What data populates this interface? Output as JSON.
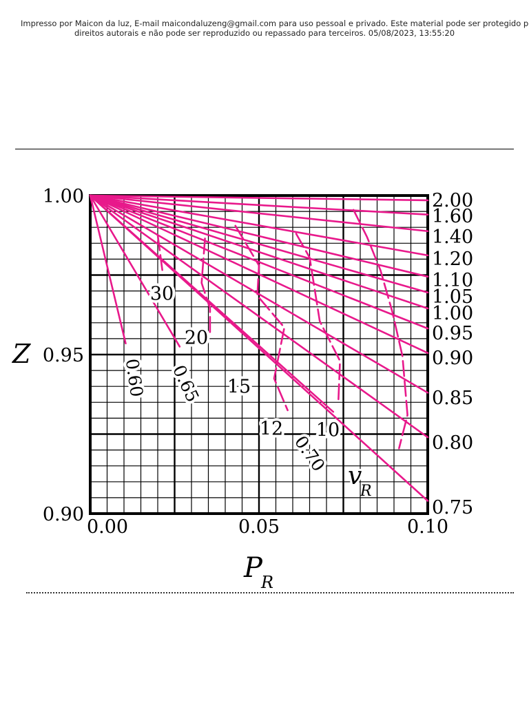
{
  "page": {
    "watermark_line1": "Impresso por Maicon da luz, E-mail maicondaluzeng@gmail.com para uso pessoal e privado. Este material pode ser protegido por",
    "watermark_line2": "direitos autorais e não pode ser reproduzido ou repassado para terceiros. 05/08/2023, 13:55:20"
  },
  "colors": {
    "curve": "#e8198b",
    "grid": "#000000",
    "text": "#000000"
  },
  "chart_data": {
    "type": "line",
    "title": "",
    "xlabel": "P",
    "xlabel_sub": "R",
    "ylabel": "Z",
    "xlim": [
      0.0,
      0.1
    ],
    "ylim": [
      0.9,
      1.0
    ],
    "grid": true,
    "x_ticks": [
      "0.00",
      "0.05",
      "0.10"
    ],
    "y_ticks": [
      "0.90",
      "0.95",
      "1.00"
    ],
    "solid_label": "",
    "dashed_label": "v",
    "dashed_label_sub": "R",
    "isotherms": [
      {
        "label": "2.00",
        "z_at_pr_0_1": 0.9985
      },
      {
        "label": "1.60",
        "z_at_pr_0_1": 0.994
      },
      {
        "label": "1.40",
        "z_at_pr_0_1": 0.9888
      },
      {
        "label": "1.20",
        "z_at_pr_0_1": 0.9812
      },
      {
        "label": "1.10",
        "z_at_pr_0_1": 0.9745
      },
      {
        "label": "1.05",
        "z_at_pr_0_1": 0.9695
      },
      {
        "label": "1.00",
        "z_at_pr_0_1": 0.9645
      },
      {
        "label": "0.95",
        "z_at_pr_0_1": 0.9582
      },
      {
        "label": "0.90",
        "z_at_pr_0_1": 0.9505
      },
      {
        "label": "0.85",
        "z_at_pr_0_1": 0.938
      },
      {
        "label": "0.80",
        "z_at_pr_0_1": 0.924
      },
      {
        "label": "0.75",
        "z_at_pr_0_1": 0.904
      },
      {
        "label": "0.70",
        "end": [
          0.072,
          0.932
        ]
      },
      {
        "label": "0.65",
        "end": [
          0.0265,
          0.9525
        ]
      },
      {
        "label": "0.60",
        "end": [
          0.0105,
          0.9535
        ]
      }
    ],
    "isochores": [
      {
        "label": "30",
        "points": [
          [
            0.02,
            0.9875
          ],
          [
            0.0215,
            0.9755
          ]
        ]
      },
      {
        "label": "20",
        "points": [
          [
            0.034,
            0.9865
          ],
          [
            0.033,
            0.9725
          ],
          [
            0.0355,
            0.9645
          ],
          [
            0.0355,
            0.957
          ]
        ]
      },
      {
        "label": "15",
        "points": [
          [
            0.043,
            0.9905
          ],
          [
            0.05,
            0.978
          ],
          [
            0.0495,
            0.9685
          ],
          [
            0.0575,
            0.9585
          ],
          [
            0.0545,
            0.9425
          ],
          [
            0.0585,
            0.9325
          ]
        ]
      },
      {
        "label": "12",
        "points": [
          [
            0.061,
            0.988
          ],
          [
            0.065,
            0.9805
          ],
          [
            0.0665,
            0.9705
          ],
          [
            0.068,
            0.9605
          ],
          [
            0.074,
            0.948
          ],
          [
            0.0735,
            0.9345
          ]
        ]
      },
      {
        "label": "10",
        "points": [
          [
            0.078,
            0.9955
          ],
          [
            0.082,
            0.987
          ],
          [
            0.086,
            0.9765
          ],
          [
            0.0895,
            0.9635
          ],
          [
            0.0925,
            0.9495
          ],
          [
            0.094,
            0.931
          ],
          [
            0.0915,
            0.9205
          ]
        ]
      }
    ],
    "right_labels": [
      "2.00",
      "1.60",
      "1.40",
      "1.20",
      "1.10",
      "1.05",
      "1.00",
      "0.95",
      "0.90",
      "0.85",
      "0.80",
      "0.75"
    ],
    "inline_labels": [
      "0.60",
      "0.65",
      "0.70",
      "30",
      "20",
      "15",
      "12",
      "10"
    ]
  }
}
